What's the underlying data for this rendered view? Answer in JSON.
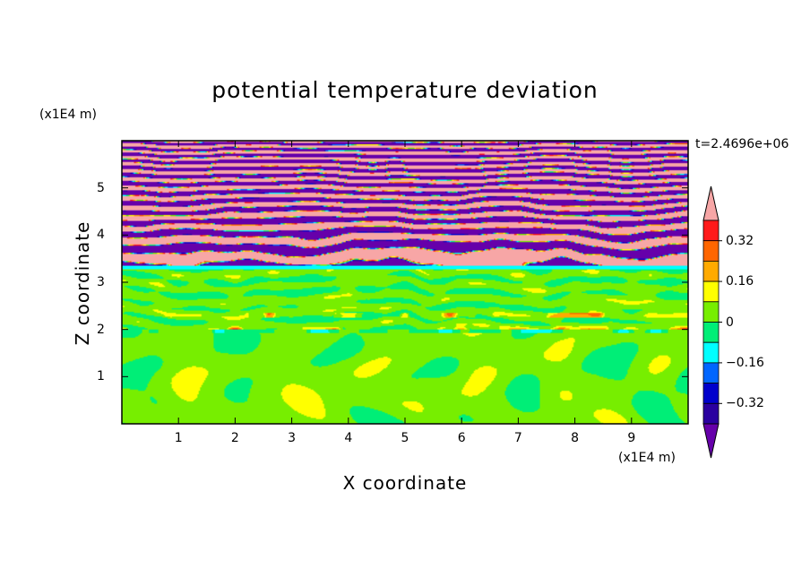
{
  "chart_data": {
    "type": "heatmap",
    "title": "potential temperature deviation",
    "xlabel": "X coordinate",
    "ylabel": "Z coordinate",
    "x_units": "(x1E4 m)",
    "y_units": "(x1E4 m)",
    "annotation": "t=2.4696e+06",
    "xlim": [
      0,
      10
    ],
    "ylim": [
      0,
      6
    ],
    "x_ticks": [
      "1",
      "2",
      "3",
      "4",
      "5",
      "6",
      "7",
      "8",
      "9"
    ],
    "y_ticks": [
      "1",
      "2",
      "3",
      "4",
      "5"
    ],
    "colorbar": {
      "levels": [
        -0.4,
        -0.32,
        -0.24,
        -0.16,
        -0.08,
        0,
        0.08,
        0.16,
        0.24,
        0.32,
        0.4
      ],
      "tick_labels": [
        "0.32",
        "0.16",
        "0",
        "−0.16",
        "−0.32"
      ],
      "colors": [
        "#6600aa",
        "#2a00a0",
        "#0000cc",
        "#0066ff",
        "#00ffff",
        "#00ee77",
        "#77ee00",
        "#ffff00",
        "#ffaa00",
        "#ff6600",
        "#ff1a1a",
        "#f7a6a6"
      ]
    },
    "regions": [
      {
        "z_range": [
          0,
          2
        ],
        "pattern": "green field (~0) with lighter-green (0 to 0.08) eddy shapes"
      },
      {
        "z_range": [
          2,
          3.3
        ],
        "pattern": "layered green/light-green with thin red/yellow filaments near z=2"
      },
      {
        "z_range": [
          3.3,
          3.4
        ],
        "pattern": "cyan band (~-0.1)"
      },
      {
        "z_range": [
          3.4,
          6
        ],
        "pattern": "alternating pink (>0.4) and purple (<-0.4) layers with multicolor fronts"
      }
    ]
  }
}
